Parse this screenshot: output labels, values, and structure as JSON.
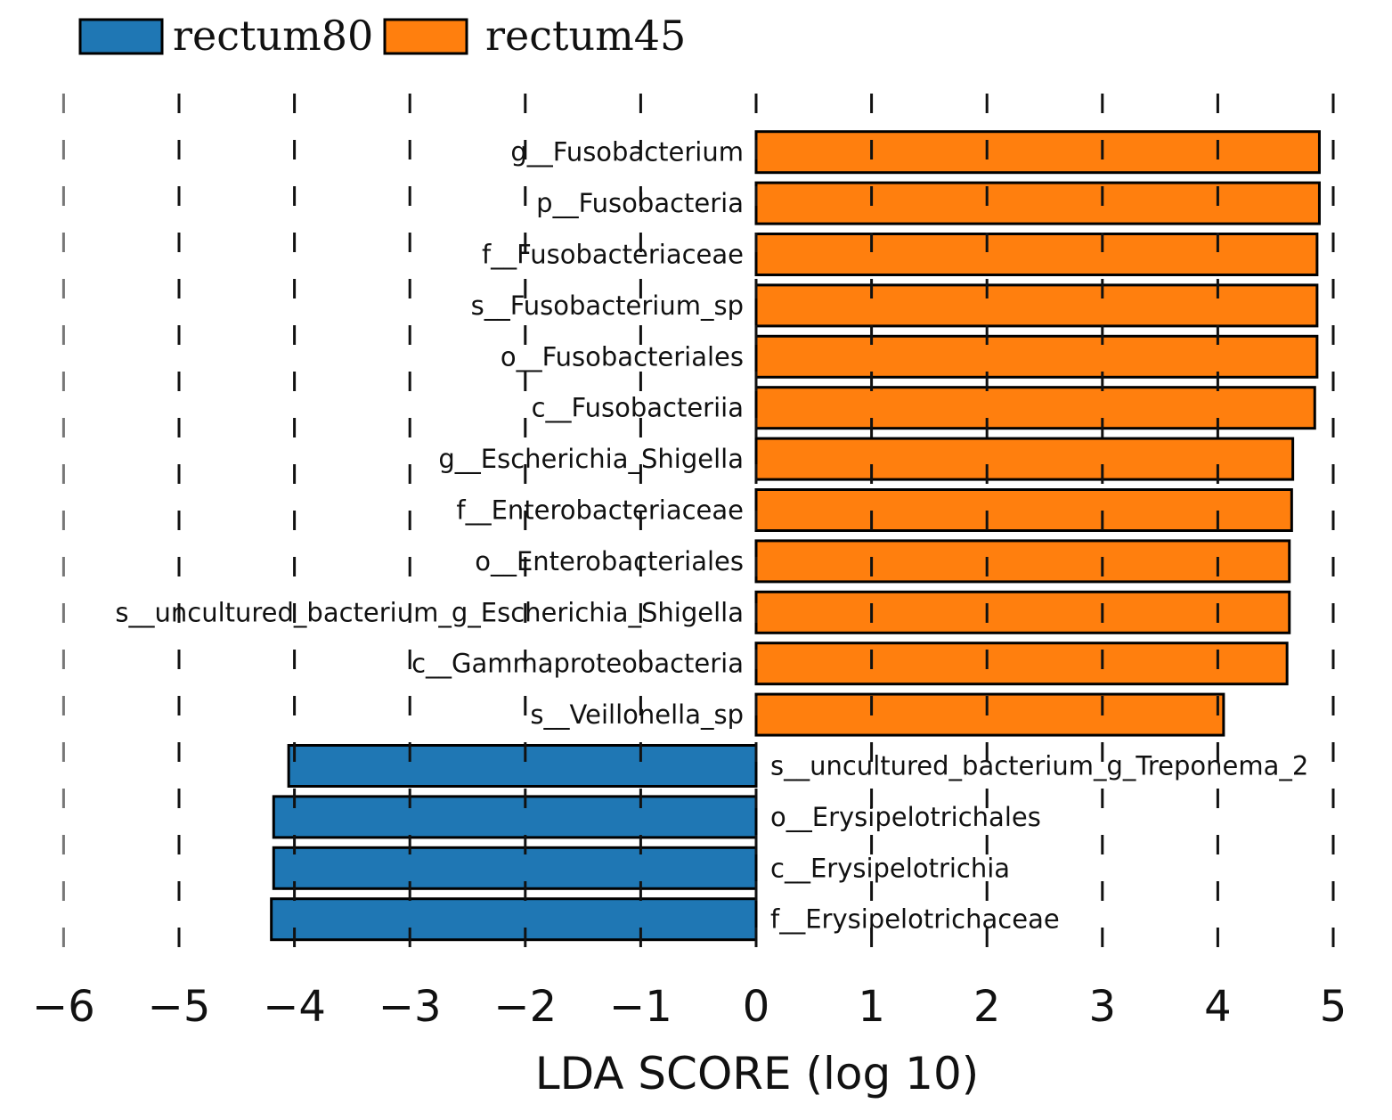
{
  "chart_data": {
    "type": "bar",
    "orientation": "horizontal",
    "xlabel": "LDA SCORE (log 10)",
    "xlim": [
      -6,
      5
    ],
    "xticks": [
      -6,
      -5,
      -4,
      -3,
      -2,
      -1,
      0,
      1,
      2,
      3,
      4,
      5
    ],
    "xtick_labels": [
      "−6",
      "−5",
      "−4",
      "−3",
      "−2",
      "−1",
      "0",
      "1",
      "2",
      "3",
      "4",
      "5"
    ],
    "grid": "vertical dashed",
    "legend": {
      "placement": "top-left",
      "entries": [
        {
          "name": "rectum80",
          "color": "#1f77b4"
        },
        {
          "name": "rectum45",
          "color": "#ff7f0e"
        }
      ]
    },
    "categories": [
      "g__Fusobacterium",
      "p__Fusobacteria",
      "f__Fusobacteriaceae",
      "s__Fusobacterium_sp",
      "o__Fusobacteriales",
      "c__Fusobacteriia",
      "g__Escherichia_Shigella",
      "f__Enterobacteriaceae",
      "o__Enterobacteriales",
      "s__uncultured_bacterium_g_Escherichia_Shigella",
      "c__Gammaproteobacteria",
      "s__Veillonella_sp",
      "s__uncultured_bacterium_g_Treponema_2",
      "o__Erysipelotrichales",
      "c__Erysipelotrichia",
      "f__Erysipelotrichaceae"
    ],
    "values": [
      4.88,
      4.88,
      4.86,
      4.86,
      4.86,
      4.84,
      4.65,
      4.64,
      4.62,
      4.62,
      4.6,
      4.05,
      -4.05,
      -4.18,
      -4.18,
      -4.2
    ],
    "groups": [
      "rectum45",
      "rectum45",
      "rectum45",
      "rectum45",
      "rectum45",
      "rectum45",
      "rectum45",
      "rectum45",
      "rectum45",
      "rectum45",
      "rectum45",
      "rectum45",
      "rectum80",
      "rectum80",
      "rectum80",
      "rectum80"
    ]
  }
}
